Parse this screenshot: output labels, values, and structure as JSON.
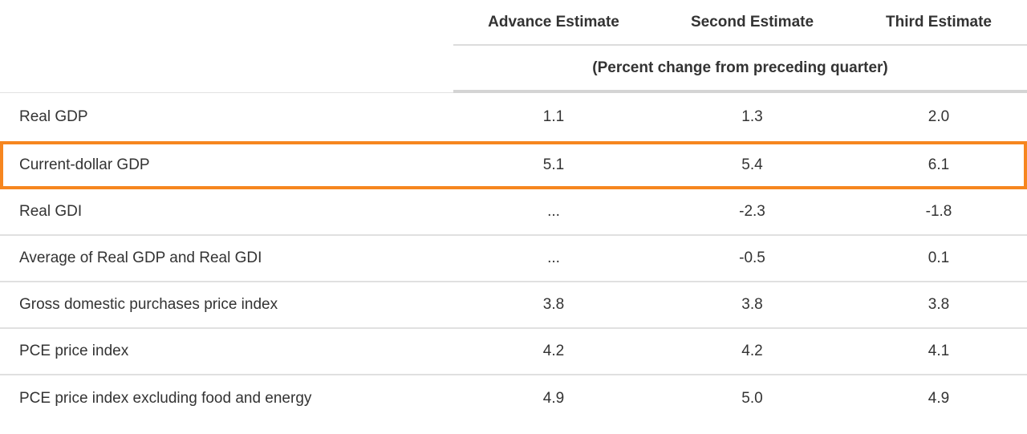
{
  "table": {
    "columns": [
      "Advance Estimate",
      "Second Estimate",
      "Third Estimate"
    ],
    "units_note": "(Percent change from preceding quarter)",
    "rows": [
      {
        "label": "Real GDP",
        "values": [
          "1.1",
          "1.3",
          "2.0"
        ],
        "highlighted": false
      },
      {
        "label": "Current-dollar GDP",
        "values": [
          "5.1",
          "5.4",
          "6.1"
        ],
        "highlighted": true
      },
      {
        "label": "Real GDI",
        "values": [
          "...",
          "-2.3",
          "-1.8"
        ],
        "highlighted": false
      },
      {
        "label": "Average of Real GDP and Real GDI",
        "values": [
          "...",
          "-0.5",
          "0.1"
        ],
        "highlighted": false
      },
      {
        "label": "Gross domestic purchases price index",
        "values": [
          "3.8",
          "3.8",
          "3.8"
        ],
        "highlighted": false
      },
      {
        "label": "PCE price index",
        "values": [
          "4.2",
          "4.2",
          "4.1"
        ],
        "highlighted": false
      },
      {
        "label": "PCE price index excluding food and energy",
        "values": [
          "4.9",
          "5.0",
          "4.9"
        ],
        "highlighted": false
      }
    ],
    "highlight_color": "#F6861F",
    "colors": {
      "text": "#333333",
      "row_separator": "#E0E0E0",
      "header_underline": "#DCDCDC",
      "thick_rule": "#D4D4D4"
    }
  }
}
